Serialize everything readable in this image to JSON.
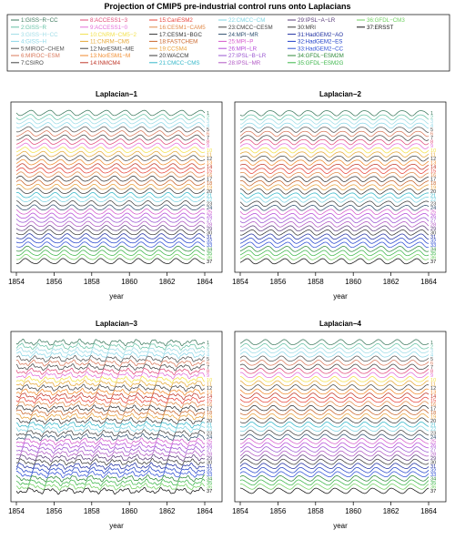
{
  "chart_data": {
    "type": "line",
    "title": "Projection of CMIP5 pre-industrial control runs onto Laplacians",
    "xlabel": "year",
    "x_range": [
      1854,
      1864
    ],
    "x_ticks": [
      1854,
      1856,
      1858,
      1860,
      1862,
      1864
    ],
    "panels": [
      {
        "title": "Laplacian−1",
        "pattern": "regular"
      },
      {
        "title": "Laplacian−2",
        "pattern": "regular"
      },
      {
        "title": "Laplacian−3",
        "pattern": "irregular"
      },
      {
        "title": "Laplacian−4",
        "pattern": "regular"
      }
    ],
    "series": [
      {
        "id": 1,
        "name": "1:GISS−R−CC",
        "color": "#3d7a5e"
      },
      {
        "id": 2,
        "name": "2:GISS−R",
        "color": "#66c2a5"
      },
      {
        "id": 3,
        "name": "3:GISS−H−CC",
        "color": "#9fdce6"
      },
      {
        "id": 4,
        "name": "4:GISS−H",
        "color": "#8cd7e8"
      },
      {
        "id": 5,
        "name": "5:MIROC−CHEM",
        "color": "#555555"
      },
      {
        "id": 6,
        "name": "6:MIROC−ESM",
        "color": "#d9785a"
      },
      {
        "id": 7,
        "name": "7:CSIRO",
        "color": "#444444"
      },
      {
        "id": 8,
        "name": "8:ACCESS1−3",
        "color": "#e04c7a"
      },
      {
        "id": 9,
        "name": "9:ACCESS1−0",
        "color": "#e36fd8"
      },
      {
        "id": 10,
        "name": "10:CNRM−CM5−2",
        "color": "#f2e14b"
      },
      {
        "id": 11,
        "name": "11:CNRM−CM5",
        "color": "#e6a93a"
      },
      {
        "id": 12,
        "name": "12:NorESM1−ME",
        "color": "#444444"
      },
      {
        "id": 13,
        "name": "13:NorESM1−M",
        "color": "#f08a2c"
      },
      {
        "id": 14,
        "name": "14:INMCM4",
        "color": "#c0392b"
      },
      {
        "id": 15,
        "name": "15:CanESM2",
        "color": "#e8453c"
      },
      {
        "id": 16,
        "name": "16:CESM1−CAM5",
        "color": "#e08a4a"
      },
      {
        "id": 17,
        "name": "17:CESM1−BGC",
        "color": "#333333"
      },
      {
        "id": 18,
        "name": "18:FASTCHEM",
        "color": "#c9682e"
      },
      {
        "id": 19,
        "name": "19:CCSM4",
        "color": "#e9a23b"
      },
      {
        "id": 20,
        "name": "20:WACCM",
        "color": "#3a3a3a"
      },
      {
        "id": 21,
        "name": "21:CMCC−CMS",
        "color": "#35b7c9"
      },
      {
        "id": 22,
        "name": "22:CMCC−CM",
        "color": "#7fd5e3"
      },
      {
        "id": 23,
        "name": "23:CMCC−CESM",
        "color": "#444444"
      },
      {
        "id": 24,
        "name": "24:MPI−MR",
        "color": "#2f4f6f"
      },
      {
        "id": 25,
        "name": "25:MPI−P",
        "color": "#d45acb"
      },
      {
        "id": 26,
        "name": "26:MPI−LR",
        "color": "#b44bd8"
      },
      {
        "id": 27,
        "name": "27:IPSL−B−LR",
        "color": "#9955d0"
      },
      {
        "id": 28,
        "name": "28:IPSL−MR",
        "color": "#b058c4"
      },
      {
        "id": 29,
        "name": "29:IPSL−A−LR",
        "color": "#5a3d7a"
      },
      {
        "id": 30,
        "name": "30:MRI",
        "color": "#3a3a3a"
      },
      {
        "id": 31,
        "name": "31:HadGEM2−AO",
        "color": "#1f2fa0"
      },
      {
        "id": 32,
        "name": "32:HadGEM2−ES",
        "color": "#2040c8"
      },
      {
        "id": 33,
        "name": "33:HadGEM2−CC",
        "color": "#3152d6"
      },
      {
        "id": 34,
        "name": "34:GFDL−ESM2M",
        "color": "#2f8a3a"
      },
      {
        "id": 35,
        "name": "35:GFDL−ESM2G",
        "color": "#3cb64a"
      },
      {
        "id": 36,
        "name": "36:GFDL−CM3",
        "color": "#6fd060"
      },
      {
        "id": 37,
        "name": "37:ERSST",
        "color": "#111111"
      }
    ]
  }
}
